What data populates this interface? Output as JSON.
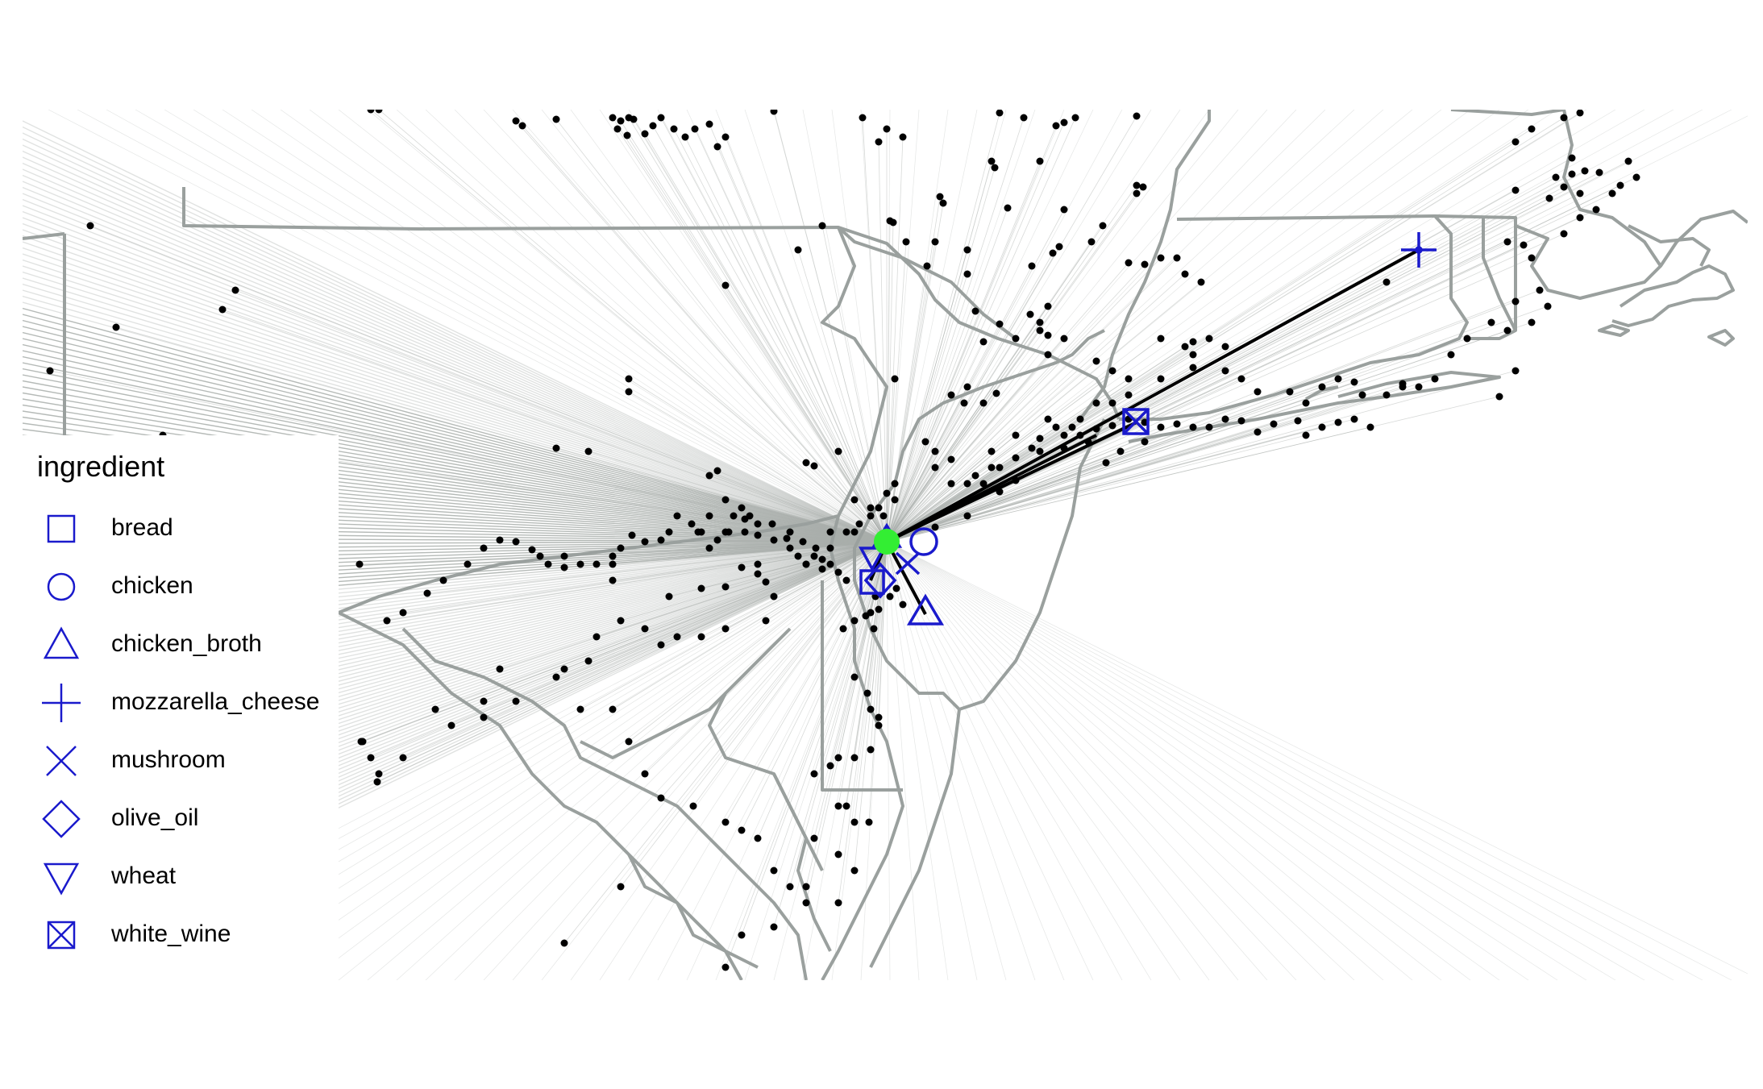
{
  "legend": {
    "title": "ingredient",
    "items": [
      {
        "label": "bread",
        "shape": "square"
      },
      {
        "label": "chicken",
        "shape": "circle"
      },
      {
        "label": "chicken_broth",
        "shape": "triangle-up"
      },
      {
        "label": "mozzarella_cheese",
        "shape": "plus"
      },
      {
        "label": "mushroom",
        "shape": "cross"
      },
      {
        "label": "olive_oil",
        "shape": "diamond"
      },
      {
        "label": "wheat",
        "shape": "triangle-down"
      },
      {
        "label": "white_wine",
        "shape": "square-cross"
      }
    ]
  },
  "colors": {
    "marker": "#1a1acc",
    "border": "#9aa09e",
    "fan_line": "#a9aeab",
    "supplier_point": "#000000",
    "destination_point": "#33ee33",
    "route_line": "#000000"
  }
}
